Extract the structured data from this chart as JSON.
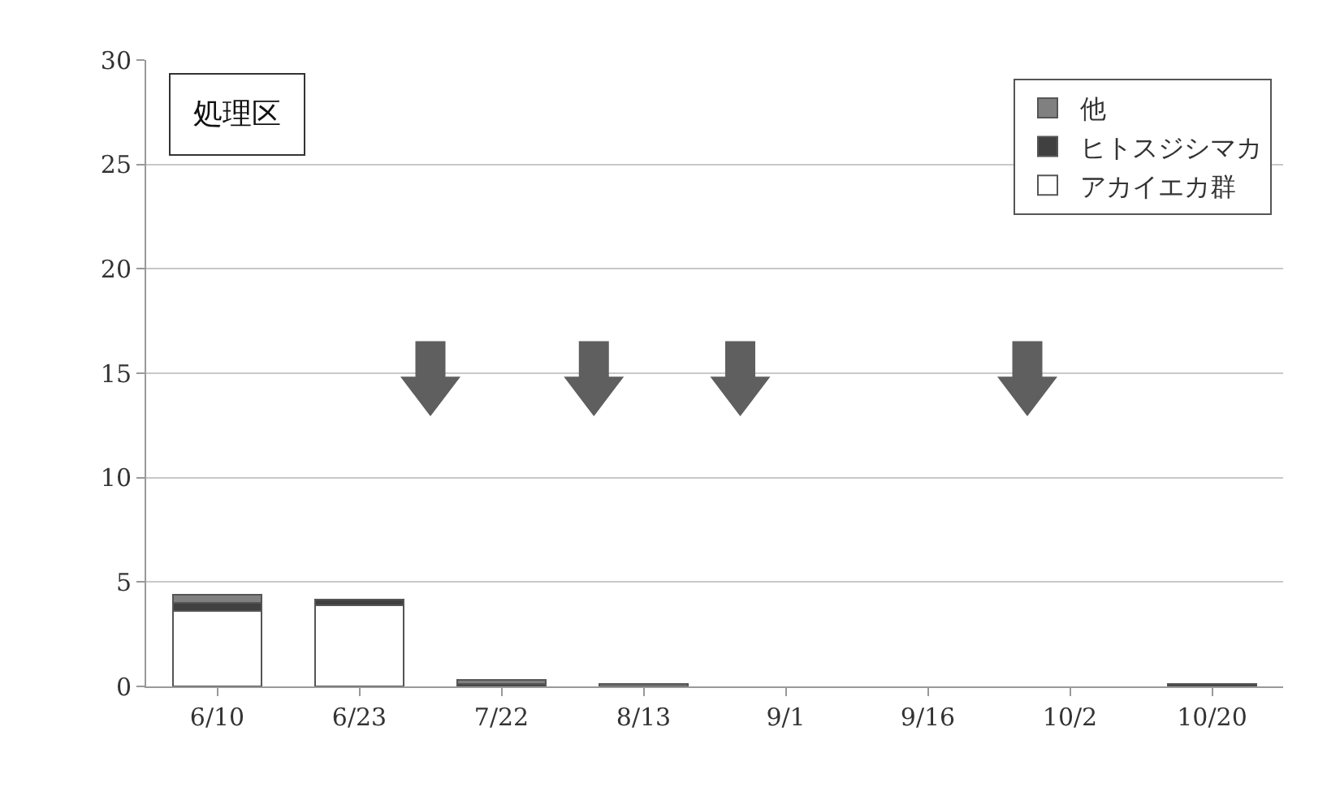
{
  "chart_data": {
    "type": "bar",
    "title": "処理区",
    "stacked": true,
    "categories": [
      "6/10",
      "6/23",
      "7/22",
      "8/13",
      "9/1",
      "9/16",
      "10/2",
      "10/20"
    ],
    "series": [
      {
        "name": "アカイエカ群",
        "color": "#ffffff",
        "values": [
          3.6,
          3.9,
          0,
          0,
          0,
          0,
          0,
          0
        ]
      },
      {
        "name": "ヒトスジシマカ",
        "color": "#404040",
        "values": [
          0.4,
          0.25,
          0.1,
          0,
          0,
          0,
          0,
          0.1
        ]
      },
      {
        "name": "他",
        "color": "#808080",
        "values": [
          0.4,
          0,
          0.2,
          0.1,
          0,
          0,
          0,
          0
        ]
      }
    ],
    "ylim": [
      0,
      30
    ],
    "yticks": [
      0,
      5,
      10,
      15,
      20,
      25,
      30
    ],
    "grid": "y",
    "legend": "top right"
  }
}
